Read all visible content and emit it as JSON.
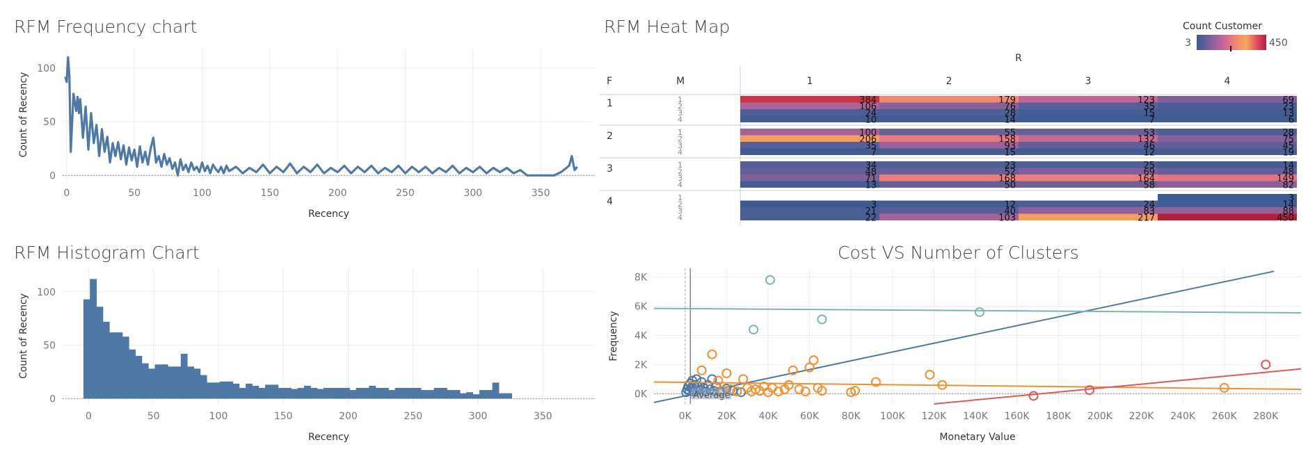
{
  "titles": {
    "freq": "RFM Frequency chart",
    "heat": "RFM Heat Map",
    "hist": "RFM Histogram Chart",
    "clusters": "Cost VS Number of Clusters"
  },
  "legend": {
    "title": "Count Customer",
    "min": "3",
    "max": "450",
    "colors": [
      "#3a5c92",
      "#6d5e9a",
      "#a3619c",
      "#d56b8c",
      "#f08a6e",
      "#f8a85e",
      "#e0505e",
      "#b51f3a"
    ]
  },
  "chart_data": [
    {
      "id": "freq",
      "type": "line",
      "title": "RFM Frequency chart",
      "xlabel": "Recency",
      "ylabel": "Count of Recency",
      "xlim": [
        -3,
        390
      ],
      "ylim": [
        -5,
        118
      ],
      "xticks": [
        0,
        50,
        100,
        150,
        200,
        250,
        300,
        350
      ],
      "yticks": [
        0,
        50,
        100
      ],
      "grid": true,
      "color": "#4e79a7",
      "points": [
        [
          -1,
          92
        ],
        [
          0,
          87
        ],
        [
          1,
          110
        ],
        [
          2,
          93
        ],
        [
          3,
          22
        ],
        [
          5,
          76
        ],
        [
          7,
          60
        ],
        [
          8,
          73
        ],
        [
          9,
          58
        ],
        [
          10,
          71
        ],
        [
          12,
          35
        ],
        [
          14,
          64
        ],
        [
          16,
          24
        ],
        [
          18,
          58
        ],
        [
          20,
          30
        ],
        [
          22,
          47
        ],
        [
          24,
          18
        ],
        [
          26,
          43
        ],
        [
          28,
          22
        ],
        [
          30,
          36
        ],
        [
          32,
          12
        ],
        [
          34,
          30
        ],
        [
          36,
          18
        ],
        [
          38,
          31
        ],
        [
          40,
          15
        ],
        [
          42,
          28
        ],
        [
          44,
          10
        ],
        [
          46,
          26
        ],
        [
          48,
          14
        ],
        [
          50,
          24
        ],
        [
          52,
          8
        ],
        [
          54,
          27
        ],
        [
          56,
          12
        ],
        [
          58,
          22
        ],
        [
          60,
          10
        ],
        [
          62,
          25
        ],
        [
          64,
          35
        ],
        [
          66,
          12
        ],
        [
          68,
          18
        ],
        [
          70,
          8
        ],
        [
          72,
          20
        ],
        [
          74,
          10
        ],
        [
          76,
          16
        ],
        [
          78,
          6
        ],
        [
          80,
          12
        ],
        [
          82,
          0
        ],
        [
          84,
          15
        ],
        [
          86,
          5
        ],
        [
          88,
          10
        ],
        [
          90,
          3
        ],
        [
          92,
          12
        ],
        [
          94,
          5
        ],
        [
          96,
          8
        ],
        [
          98,
          3
        ],
        [
          100,
          12
        ],
        [
          102,
          4
        ],
        [
          104,
          9
        ],
        [
          106,
          2
        ],
        [
          108,
          10
        ],
        [
          110,
          6
        ],
        [
          112,
          3
        ],
        [
          114,
          8
        ],
        [
          116,
          2
        ],
        [
          118,
          9
        ],
        [
          120,
          4
        ],
        [
          125,
          8
        ],
        [
          130,
          2
        ],
        [
          135,
          7
        ],
        [
          140,
          3
        ],
        [
          145,
          10
        ],
        [
          150,
          2
        ],
        [
          155,
          8
        ],
        [
          160,
          3
        ],
        [
          165,
          11
        ],
        [
          170,
          2
        ],
        [
          175,
          8
        ],
        [
          180,
          3
        ],
        [
          185,
          10
        ],
        [
          190,
          2
        ],
        [
          195,
          7
        ],
        [
          200,
          3
        ],
        [
          205,
          9
        ],
        [
          210,
          2
        ],
        [
          215,
          8
        ],
        [
          220,
          3
        ],
        [
          225,
          9
        ],
        [
          230,
          2
        ],
        [
          235,
          7
        ],
        [
          240,
          3
        ],
        [
          245,
          9
        ],
        [
          250,
          2
        ],
        [
          255,
          8
        ],
        [
          260,
          3
        ],
        [
          265,
          8
        ],
        [
          270,
          2
        ],
        [
          275,
          7
        ],
        [
          280,
          3
        ],
        [
          285,
          9
        ],
        [
          290,
          2
        ],
        [
          295,
          7
        ],
        [
          300,
          3
        ],
        [
          305,
          8
        ],
        [
          310,
          2
        ],
        [
          315,
          7
        ],
        [
          320,
          3
        ],
        [
          325,
          7
        ],
        [
          330,
          2
        ],
        [
          335,
          5
        ],
        [
          340,
          0
        ],
        [
          350,
          0
        ],
        [
          360,
          0
        ],
        [
          365,
          3
        ],
        [
          368,
          6
        ],
        [
          371,
          9
        ],
        [
          373,
          18
        ],
        [
          375,
          5
        ],
        [
          377,
          8
        ]
      ]
    },
    {
      "id": "hist",
      "type": "bar",
      "title": "RFM Histogram Chart",
      "xlabel": "Recency",
      "ylabel": "Count of Recency",
      "xlim": [
        -20,
        390
      ],
      "ylim": [
        -5,
        122
      ],
      "xticks": [
        0,
        50,
        100,
        150,
        200,
        250,
        300,
        350
      ],
      "yticks": [
        0,
        50,
        100
      ],
      "bin_width": 5,
      "bin_start": -4,
      "color": "#4e79a7",
      "values": [
        93,
        112,
        86,
        72,
        62,
        62,
        58,
        46,
        40,
        33,
        28,
        32,
        32,
        30,
        30,
        42,
        30,
        28,
        22,
        15,
        15,
        16,
        16,
        14,
        10,
        14,
        12,
        10,
        13,
        13,
        10,
        10,
        9,
        10,
        12,
        10,
        9,
        10,
        10,
        10,
        10,
        8,
        10,
        10,
        12,
        10,
        10,
        8,
        10,
        10,
        10,
        10,
        8,
        8,
        10,
        10,
        8,
        8,
        5,
        6,
        4,
        8,
        8,
        15,
        5,
        5
      ]
    },
    {
      "id": "heat",
      "type": "heatmap",
      "title": "RFM Heat Map",
      "col_header": "R",
      "row_headers": [
        "F",
        "M"
      ],
      "columns": [
        "1",
        "2",
        "3",
        "4"
      ],
      "groups": [
        {
          "f": "1",
          "rows": [
            {
              "m": "1",
              "values": [
                384,
                179,
                123,
                69
              ]
            },
            {
              "m": "2",
              "values": [
                106,
                76,
                35,
                23
              ]
            },
            {
              "m": "3",
              "values": [
                24,
                28,
                15,
                13
              ]
            },
            {
              "m": "4",
              "values": [
                10,
                14,
                7,
                6
              ]
            }
          ]
        },
        {
          "f": "2",
          "rows": [
            {
              "m": "1",
              "values": [
                100,
                55,
                53,
                28
              ]
            },
            {
              "m": "2",
              "values": [
                206,
                158,
                132,
                75
              ]
            },
            {
              "m": "3",
              "values": [
                35,
                93,
                46,
                45
              ]
            },
            {
              "m": "4",
              "values": [
                7,
                15,
                12,
                19
              ]
            }
          ]
        },
        {
          "f": "3",
          "rows": [
            {
              "m": "1",
              "values": [
                34,
                23,
                25,
                14
              ]
            },
            {
              "m": "2",
              "values": [
                48,
                52,
                69,
                48
              ]
            },
            {
              "m": "3",
              "values": [
                71,
                168,
                164,
                149
              ]
            },
            {
              "m": "4",
              "values": [
                13,
                50,
                58,
                82
              ]
            }
          ]
        },
        {
          "f": "4",
          "rows": [
            {
              "m": "1",
              "values": [
                null,
                null,
                null,
                3
              ]
            },
            {
              "m": "2",
              "values": [
                3,
                12,
                24,
                14
              ]
            },
            {
              "m": "3",
              "values": [
                21,
                40,
                83,
                88
              ]
            },
            {
              "m": "4",
              "values": [
                22,
                103,
                217,
                450
              ]
            }
          ]
        }
      ]
    },
    {
      "id": "clusters",
      "type": "scatter",
      "title": "Cost VS Number of Clusters",
      "xlabel": "Monetary Value",
      "ylabel": "Frequency",
      "xlim": [
        -15000,
        297000
      ],
      "ylim": [
        -700,
        8600
      ],
      "xticks": [
        0,
        20000,
        40000,
        60000,
        80000,
        100000,
        120000,
        140000,
        160000,
        180000,
        200000,
        220000,
        240000,
        260000,
        280000
      ],
      "xticklabels": [
        "0K",
        "20K",
        "40K",
        "60K",
        "80K",
        "100K",
        "120K",
        "140K",
        "160K",
        "180K",
        "200K",
        "220K",
        "240K",
        "260K",
        "280K"
      ],
      "yticks": [
        0,
        2000,
        4000,
        6000,
        8000
      ],
      "yticklabels": [
        "0K",
        "2K",
        "4K",
        "6K",
        "8K"
      ],
      "average_label": "Average",
      "average_x": 2500,
      "series": [
        {
          "color": "#4e79a7",
          "points": [
            [
              500,
              100
            ],
            [
              1000,
              300
            ],
            [
              1500,
              500
            ],
            [
              2000,
              200
            ],
            [
              2500,
              700
            ],
            [
              3000,
              400
            ],
            [
              3500,
              900
            ],
            [
              4000,
              150
            ],
            [
              4500,
              600
            ],
            [
              5000,
              300
            ],
            [
              5500,
              1000
            ],
            [
              6000,
              500
            ],
            [
              7000,
              250
            ],
            [
              8000,
              800
            ],
            [
              9000,
              400
            ],
            [
              10000,
              150
            ],
            [
              11000,
              600
            ],
            [
              12000,
              300
            ],
            [
              13000,
              1000
            ],
            [
              14000,
              200
            ],
            [
              15000,
              500
            ],
            [
              17000,
              150
            ],
            [
              20000,
              350
            ],
            [
              23000,
              200
            ],
            [
              27000,
              100
            ]
          ],
          "trend": [
            [
              -15000,
              -600
            ],
            [
              284000,
              8400
            ]
          ]
        },
        {
          "color": "#f28e2b",
          "points": [
            [
              8000,
              1600
            ],
            [
              13000,
              2700
            ],
            [
              16000,
              900
            ],
            [
              18000,
              200
            ],
            [
              20000,
              1400
            ],
            [
              22000,
              300
            ],
            [
              25000,
              150
            ],
            [
              28000,
              1000
            ],
            [
              30000,
              400
            ],
            [
              32000,
              150
            ],
            [
              34000,
              300
            ],
            [
              36000,
              200
            ],
            [
              38000,
              500
            ],
            [
              40000,
              100
            ],
            [
              42000,
              400
            ],
            [
              45000,
              150
            ],
            [
              48000,
              300
            ],
            [
              50000,
              600
            ],
            [
              52000,
              1600
            ],
            [
              55000,
              300
            ],
            [
              58000,
              150
            ],
            [
              60000,
              1800
            ],
            [
              62000,
              2300
            ],
            [
              64000,
              400
            ],
            [
              66000,
              200
            ],
            [
              80000,
              100
            ],
            [
              82000,
              200
            ],
            [
              92000,
              800
            ],
            [
              118000,
              1300
            ],
            [
              124000,
              600
            ],
            [
              260000,
              400
            ]
          ],
          "trend": [
            [
              -15000,
              800
            ],
            [
              297000,
              300
            ]
          ]
        },
        {
          "color": "#76b7b2",
          "points": [
            [
              33000,
              4400
            ],
            [
              41000,
              7800
            ],
            [
              66000,
              5100
            ],
            [
              142000,
              5600
            ]
          ],
          "trend": [
            [
              -15000,
              5850
            ],
            [
              297000,
              5550
            ]
          ]
        },
        {
          "color": "#e15759",
          "points": [
            [
              168000,
              -150
            ],
            [
              195000,
              250
            ],
            [
              280000,
              2000
            ]
          ],
          "trend": [
            [
              120000,
              -700
            ],
            [
              297000,
              1700
            ]
          ]
        }
      ]
    }
  ]
}
